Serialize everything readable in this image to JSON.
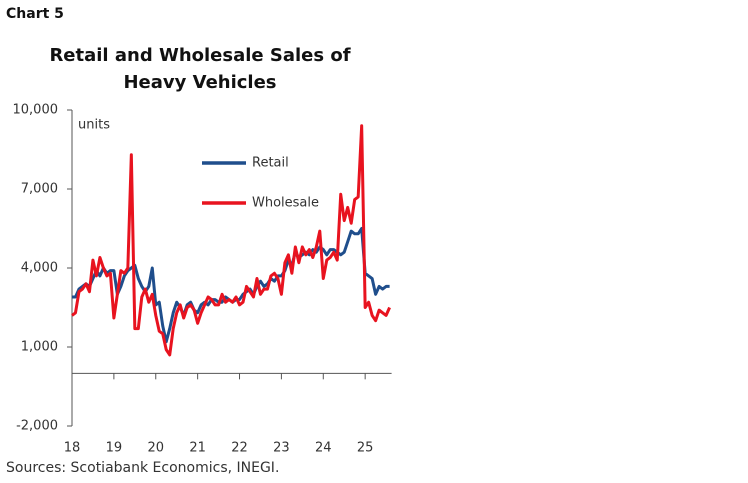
{
  "chart_data": {
    "type": "line",
    "chart_label": "Chart 5",
    "title": "Retail and Wholesale Sales of Heavy Vehicles",
    "y_axis_label": "units",
    "source": "Sources: Scotiabank Economics, INEGI.",
    "categories": [
      "18",
      null,
      null,
      null,
      null,
      null,
      null,
      null,
      null,
      null,
      null,
      null,
      "19",
      null,
      null,
      null,
      null,
      null,
      null,
      null,
      null,
      null,
      null,
      null,
      "20",
      null,
      null,
      null,
      null,
      null,
      null,
      null,
      null,
      null,
      null,
      null,
      "21",
      null,
      null,
      null,
      null,
      null,
      null,
      null,
      null,
      null,
      null,
      null,
      "22",
      null,
      null,
      null,
      null,
      null,
      null,
      null,
      null,
      null,
      null,
      null,
      "23",
      null,
      null,
      null,
      null,
      null,
      null,
      null,
      null,
      null,
      null,
      null,
      "24",
      null,
      null,
      null,
      null,
      null,
      null,
      null,
      null,
      null,
      null,
      null,
      "25",
      null,
      null,
      null,
      null,
      null,
      null,
      null
    ],
    "series": [
      {
        "name": "Retail",
        "color": "#1f4e8c",
        "values": [
          2900,
          2900,
          3200,
          3300,
          3400,
          3300,
          3600,
          3900,
          3700,
          4000,
          3800,
          3900,
          3900,
          3000,
          3300,
          3700,
          3900,
          4000,
          4100,
          3600,
          3300,
          3100,
          3300,
          4000,
          2600,
          2700,
          1800,
          1200,
          1700,
          2300,
          2700,
          2500,
          2200,
          2600,
          2700,
          2400,
          2300,
          2600,
          2700,
          2600,
          2800,
          2800,
          2700,
          2700,
          2900,
          2800,
          2700,
          2800,
          2800,
          3000,
          3100,
          3200,
          3000,
          3300,
          3500,
          3300,
          3400,
          3600,
          3500,
          3700,
          3700,
          3900,
          4300,
          4100,
          4600,
          4400,
          4500,
          4600,
          4500,
          4700,
          4600,
          4800,
          4700,
          4500,
          4700,
          4700,
          4600,
          4500,
          4600,
          5000,
          5400,
          5300,
          5300,
          5500,
          3800,
          3700,
          3600,
          3000,
          3300,
          3200,
          3300,
          3300
        ]
      },
      {
        "name": "Wholesale",
        "color": "#e8131f",
        "values": [
          2200,
          2300,
          3100,
          3200,
          3400,
          3100,
          4300,
          3700,
          4400,
          4000,
          3700,
          3800,
          2100,
          3000,
          3900,
          3800,
          4000,
          8300,
          1700,
          1700,
          2900,
          3200,
          2700,
          3000,
          2200,
          1600,
          1500,
          900,
          700,
          1700,
          2300,
          2600,
          2100,
          2500,
          2600,
          2400,
          1900,
          2300,
          2600,
          2900,
          2800,
          2600,
          2600,
          3000,
          2700,
          2800,
          2700,
          2900,
          2600,
          2700,
          3300,
          3100,
          2900,
          3600,
          3000,
          3200,
          3200,
          3700,
          3800,
          3600,
          3000,
          4200,
          4500,
          3800,
          4800,
          4200,
          4800,
          4500,
          4700,
          4400,
          4800,
          5400,
          3600,
          4300,
          4400,
          4600,
          4300,
          6800,
          5800,
          6300,
          5700,
          6600,
          6700,
          9400,
          2500,
          2700,
          2200,
          2000,
          2400,
          2300,
          2200,
          2500
        ]
      }
    ],
    "ylim": [
      -2000,
      10000
    ],
    "yticks": [
      {
        "value": -2000,
        "label": "-2,000"
      },
      {
        "value": 1000,
        "label": "1,000"
      },
      {
        "value": 4000,
        "label": "4,000"
      },
      {
        "value": 7000,
        "label": "7,000"
      },
      {
        "value": 10000,
        "label": "10,000"
      }
    ],
    "grid": false,
    "legend": "upper center"
  }
}
